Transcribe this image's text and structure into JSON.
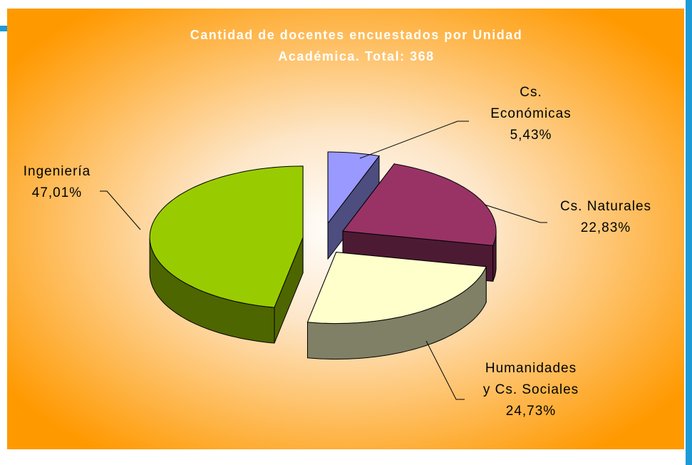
{
  "chart_data": {
    "type": "pie3d",
    "title": [
      "Cantidad de docentes encuestados por Unidad",
      "Académica. Total: 368"
    ],
    "categories": [
      [
        "Cs.",
        "Económicas"
      ],
      [
        "Cs. Naturales"
      ],
      [
        "Humanidades",
        "y Cs. Sociales"
      ],
      [
        "Ingeniería"
      ]
    ],
    "values": [
      5.43,
      22.83,
      24.73,
      47.01
    ],
    "value_labels": [
      "5,43%",
      "22,83%",
      "24,73%",
      "47,01%"
    ],
    "colors": [
      "#9999ff",
      "#993366",
      "#ffffcc",
      "#99cc00"
    ],
    "side_colors": [
      "#4d4d80",
      "#4d1a33",
      "#808066",
      "#4d6600"
    ]
  }
}
